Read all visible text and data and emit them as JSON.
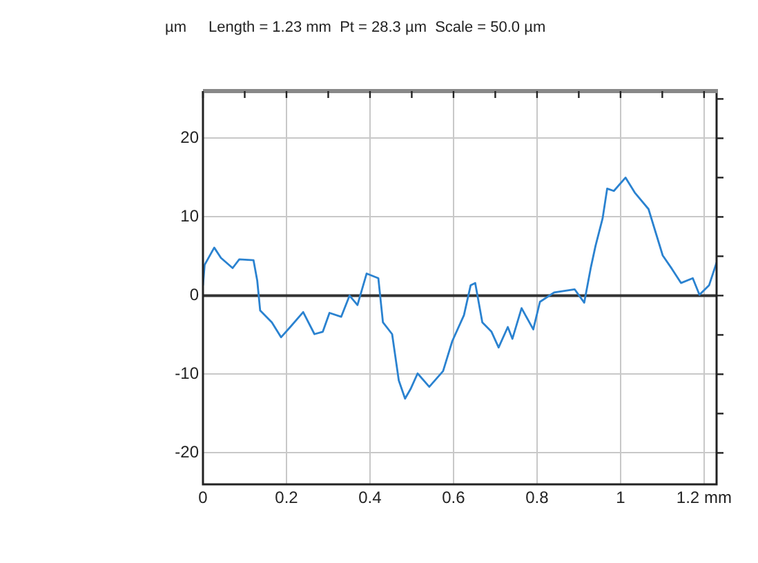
{
  "chart_data": {
    "type": "line",
    "title": "Length = 1.23 mm  Pt = 28.3 µm  Scale = 50.0 µm",
    "ylabel": "µm",
    "x": [
      0,
      0.004,
      0.027,
      0.043,
      0.071,
      0.087,
      0.121,
      0.13,
      0.137,
      0.165,
      0.187,
      0.209,
      0.24,
      0.267,
      0.287,
      0.303,
      0.331,
      0.351,
      0.37,
      0.392,
      0.42,
      0.431,
      0.453,
      0.469,
      0.484,
      0.497,
      0.514,
      0.542,
      0.575,
      0.597,
      0.625,
      0.641,
      0.652,
      0.669,
      0.691,
      0.708,
      0.73,
      0.741,
      0.763,
      0.791,
      0.807,
      0.841,
      0.89,
      0.913,
      0.929,
      0.94,
      0.957,
      0.968,
      0.984,
      1.012,
      1.034,
      1.067,
      1.101,
      1.123,
      1.145,
      1.173,
      1.189,
      1.212,
      1.23
    ],
    "series": [
      {
        "color": "#2a82d0",
        "values": [
          1.3,
          3.9,
          6.1,
          4.8,
          3.5,
          4.6,
          4.5,
          1.9,
          -1.9,
          -3.4,
          -5.3,
          -4.0,
          -2.1,
          -4.9,
          -4.6,
          -2.2,
          -2.7,
          0,
          -1.2,
          2.8,
          2.2,
          -3.4,
          -4.9,
          -10.8,
          -13.1,
          -11.9,
          -9.9,
          -11.6,
          -9.6,
          -5.8,
          -2.5,
          1.3,
          1.6,
          -3.4,
          -4.6,
          -6.6,
          -4.0,
          -5.5,
          -1.6,
          -4.3,
          -0.8,
          0.4,
          0.8,
          -0.9,
          3.6,
          6.3,
          9.8,
          13.6,
          13.3,
          15.0,
          13.1,
          11.0,
          5.1,
          3.4,
          1.6,
          2.2,
          0.1,
          1.3,
          4.2
        ]
      }
    ],
    "xlim": [
      0,
      1.23
    ],
    "xticks": [
      0,
      {
        "value": 0.1,
        "label": null
      },
      0.2,
      {
        "value": 0.3,
        "label": null
      },
      0.4,
      {
        "value": 0.5,
        "label": null
      },
      0.6,
      {
        "value": 0.7,
        "label": null
      },
      0.8,
      {
        "value": 0.9,
        "label": null
      },
      1,
      {
        "value": 1.1,
        "label": null
      },
      {
        "value": 1.2,
        "label": "1.2 mm"
      }
    ],
    "ylim": [
      -24,
      26
    ],
    "yticks": [
      -20,
      {
        "value": -15,
        "label": null
      },
      -10,
      {
        "value": -5,
        "label": null
      },
      0,
      {
        "value": 5,
        "label": null
      },
      10,
      {
        "value": 15,
        "label": null
      },
      20,
      {
        "value": 25,
        "label": null
      }
    ],
    "ref_lines": [
      {
        "axis": "y",
        "value": 0,
        "color": "#333333"
      }
    ],
    "grid": true,
    "legend": false,
    "marker": "none",
    "line_style": "solid"
  }
}
